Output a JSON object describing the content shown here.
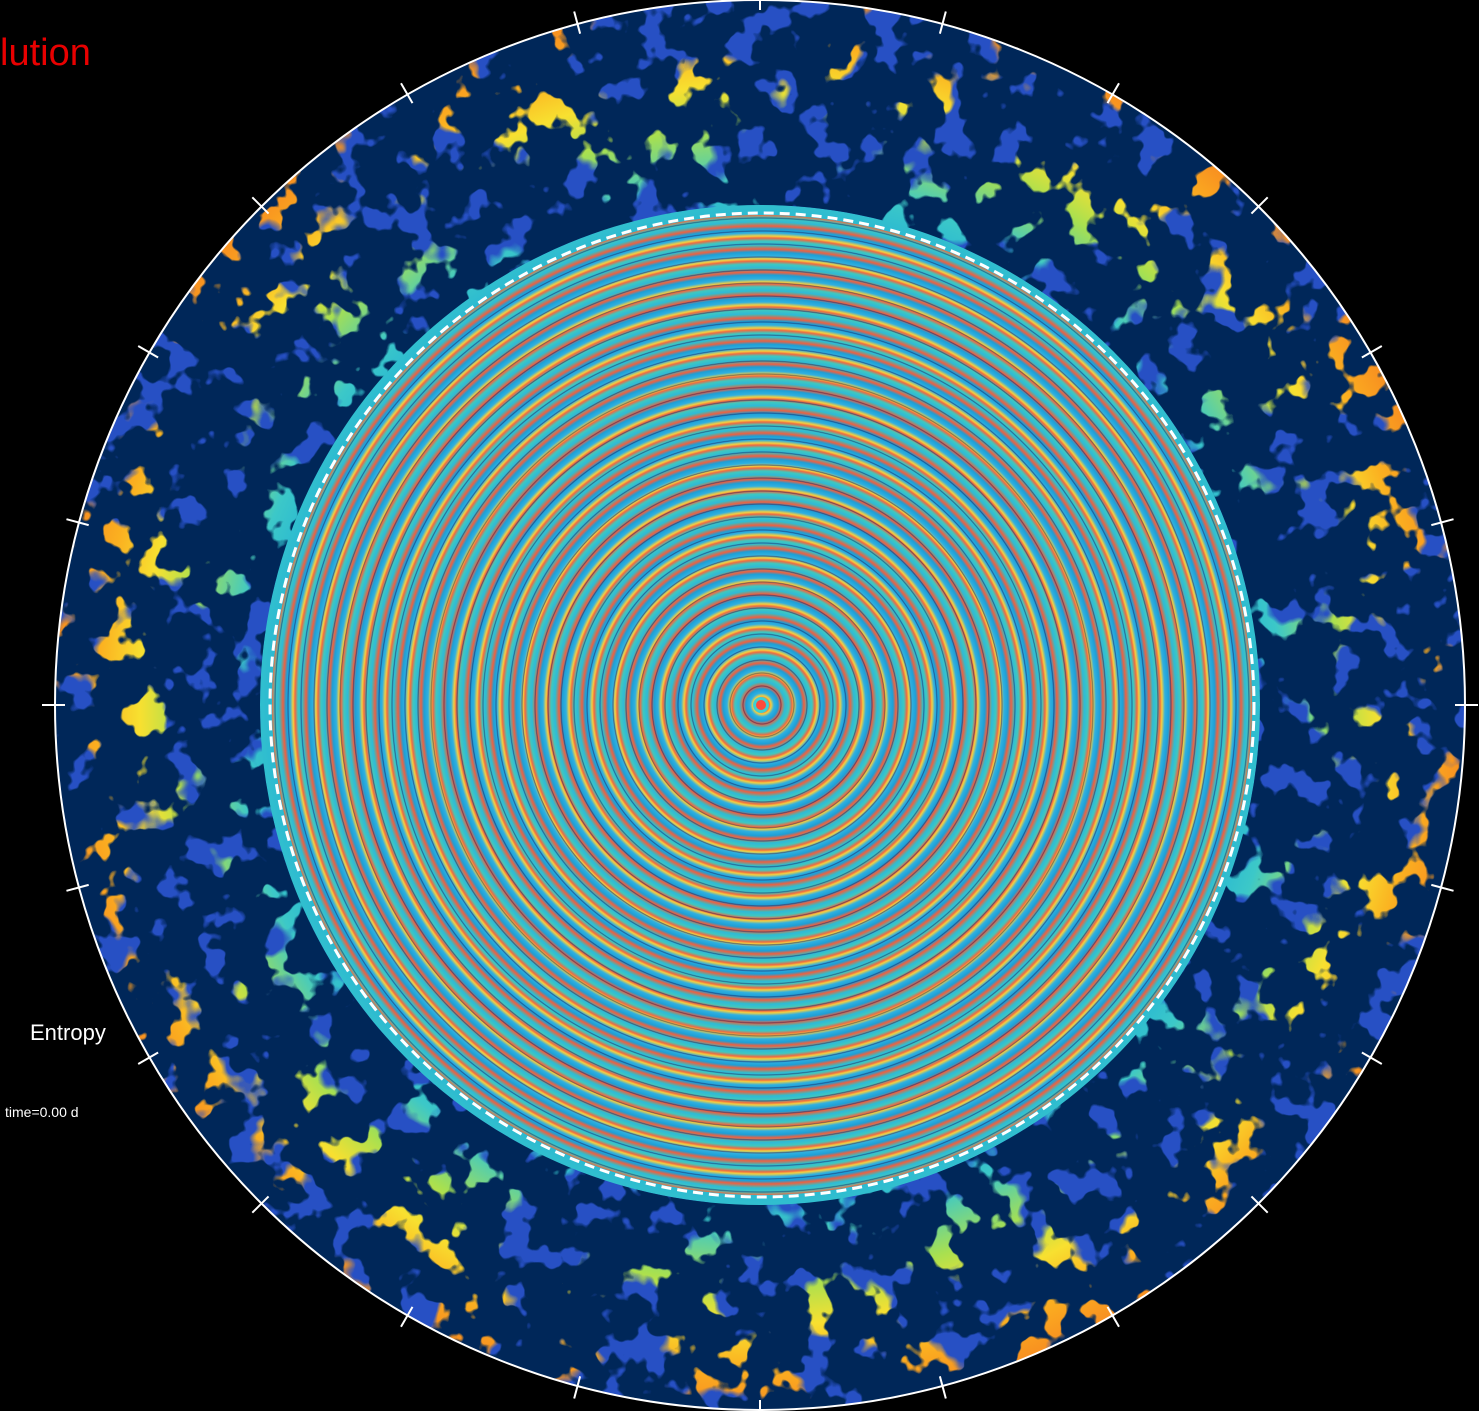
{
  "title": "lution",
  "field_label": "Entropy",
  "time_label": "time=0.00 d"
}
